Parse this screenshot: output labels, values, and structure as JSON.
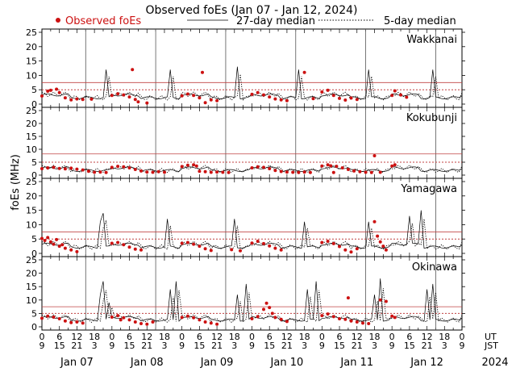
{
  "chart_data": {
    "type": "scatter",
    "title": "Observed foEs (Jan 07 - Jan 12, 2024)",
    "legend": {
      "observed": "Observed foEs",
      "median27": "27-day median",
      "median5": "5-day median",
      "placement": "top"
    },
    "ylabel": "foEs (MHz)",
    "ylim": [
      0,
      25
    ],
    "yticks": [
      0,
      5,
      10,
      15,
      20,
      25
    ],
    "x_unit_ut": "UT",
    "x_unit_jst": "JST",
    "year": "2024",
    "days": [
      "Jan 07",
      "Jan 08",
      "Jan 09",
      "Jan 10",
      "Jan 11",
      "Jan 12"
    ],
    "ut_ticks": [
      "0",
      "6",
      "12",
      "18",
      "0",
      "6",
      "12",
      "18",
      "0",
      "6",
      "12",
      "18",
      "0",
      "6",
      "12",
      "18",
      "0",
      "6",
      "12",
      "18",
      "0",
      "6",
      "12",
      "18",
      "0"
    ],
    "jst_ticks": [
      "9",
      "15",
      "21",
      "3",
      "9",
      "15",
      "21",
      "3",
      "9",
      "15",
      "21",
      "3",
      "9",
      "15",
      "21",
      "3",
      "9",
      "15",
      "21",
      "3",
      "9",
      "15",
      "21",
      "3",
      "9"
    ],
    "colors": {
      "observed": "#cc1111",
      "guides": "#c04040",
      "median": "#000000"
    },
    "stations": [
      {
        "name": "Wakkanai",
        "guide_solid": 7.5,
        "guide_dotted": 5,
        "median_base": 2.2,
        "median_spikes": [
          [
            22,
            12
          ],
          [
            44,
            12
          ],
          [
            67,
            13
          ],
          [
            88,
            12
          ],
          [
            112,
            12
          ],
          [
            134,
            12
          ]
        ],
        "observed": [
          [
            0,
            2.8
          ],
          [
            2,
            4.5
          ],
          [
            3,
            4.8
          ],
          [
            5,
            5.2
          ],
          [
            6,
            4.0
          ],
          [
            8,
            2.2
          ],
          [
            10,
            1.5
          ],
          [
            12,
            1.8
          ],
          [
            14,
            1.6
          ],
          [
            17,
            1.7
          ],
          [
            24,
            3.0
          ],
          [
            26,
            3.6
          ],
          [
            28,
            3.2
          ],
          [
            30,
            2.5
          ],
          [
            31,
            12.0
          ],
          [
            32,
            1.6
          ],
          [
            33,
            0.8
          ],
          [
            36,
            0.4
          ],
          [
            48,
            2.9
          ],
          [
            50,
            3.5
          ],
          [
            52,
            3.0
          ],
          [
            54,
            2.2
          ],
          [
            55,
            11.0
          ],
          [
            56,
            0.5
          ],
          [
            58,
            1.5
          ],
          [
            60,
            1.2
          ],
          [
            72,
            3.4
          ],
          [
            74,
            4.0
          ],
          [
            76,
            3.2
          ],
          [
            78,
            2.5
          ],
          [
            80,
            1.8
          ],
          [
            82,
            1.5
          ],
          [
            84,
            1.2
          ],
          [
            93,
            1.9
          ],
          [
            96,
            4.2
          ],
          [
            98,
            4.8
          ],
          [
            100,
            3.0
          ],
          [
            102,
            2.0
          ],
          [
            104,
            1.4
          ],
          [
            106,
            2.1
          ],
          [
            108,
            1.6
          ],
          [
            90,
            11.0
          ],
          [
            120,
            3.0
          ],
          [
            121,
            4.6
          ],
          [
            123,
            3.2
          ],
          [
            125,
            2.4
          ]
        ]
      },
      {
        "name": "Kokubunji",
        "guide_solid": 8.2,
        "guide_dotted": 5,
        "median_base": 1.8,
        "median_spikes": [],
        "observed": [
          [
            0,
            2.5
          ],
          [
            2,
            2.8
          ],
          [
            4,
            3.0
          ],
          [
            6,
            2.6
          ],
          [
            8,
            2.4
          ],
          [
            10,
            2.7
          ],
          [
            12,
            2.3
          ],
          [
            14,
            2.0
          ],
          [
            16,
            1.5
          ],
          [
            18,
            1.1
          ],
          [
            20,
            1.2
          ],
          [
            22,
            1.0
          ],
          [
            24,
            3.0
          ],
          [
            26,
            3.4
          ],
          [
            28,
            3.2
          ],
          [
            30,
            2.8
          ],
          [
            32,
            2.2
          ],
          [
            34,
            1.6
          ],
          [
            36,
            1.2
          ],
          [
            38,
            1.1
          ],
          [
            40,
            1.3
          ],
          [
            42,
            1.1
          ],
          [
            48,
            3.3
          ],
          [
            50,
            3.8
          ],
          [
            52,
            4.0
          ],
          [
            53,
            3.5
          ],
          [
            54,
            1.5
          ],
          [
            56,
            1.3
          ],
          [
            58,
            1.1
          ],
          [
            60,
            1.2
          ],
          [
            62,
            1.1
          ],
          [
            64,
            1.0
          ],
          [
            72,
            2.8
          ],
          [
            74,
            3.2
          ],
          [
            76,
            3.0
          ],
          [
            78,
            2.5
          ],
          [
            80,
            1.8
          ],
          [
            82,
            1.4
          ],
          [
            84,
            1.2
          ],
          [
            86,
            1.1
          ],
          [
            88,
            1.0
          ],
          [
            90,
            1.2
          ],
          [
            92,
            1.0
          ],
          [
            96,
            3.5
          ],
          [
            98,
            4.0
          ],
          [
            99,
            3.6
          ],
          [
            100,
            1.0
          ],
          [
            101,
            3.4
          ],
          [
            103,
            2.8
          ],
          [
            105,
            2.2
          ],
          [
            107,
            1.6
          ],
          [
            109,
            1.3
          ],
          [
            111,
            1.1
          ],
          [
            113,
            1.0
          ],
          [
            114,
            7.5
          ],
          [
            116,
            1.1
          ],
          [
            120,
            3.5
          ],
          [
            121,
            4.0
          ]
        ]
      },
      {
        "name": "Yamagawa",
        "guide_solid": 7.5,
        "guide_dotted": 5,
        "median_base": 2.2,
        "median_spikes": [
          [
            20,
            11
          ],
          [
            21,
            14
          ],
          [
            43,
            12
          ],
          [
            66,
            12
          ],
          [
            90,
            11
          ],
          [
            112,
            11
          ],
          [
            126,
            13
          ],
          [
            130,
            15
          ]
        ],
        "observed": [
          [
            0,
            5.2
          ],
          [
            1,
            4.5
          ],
          [
            2,
            5.5
          ],
          [
            3,
            4.0
          ],
          [
            4,
            3.2
          ],
          [
            5,
            4.8
          ],
          [
            6,
            2.5
          ],
          [
            7,
            3.0
          ],
          [
            8,
            1.8
          ],
          [
            10,
            1.2
          ],
          [
            12,
            0.6
          ],
          [
            24,
            3.5
          ],
          [
            26,
            3.8
          ],
          [
            28,
            3.0
          ],
          [
            30,
            2.2
          ],
          [
            32,
            1.5
          ],
          [
            34,
            1.2
          ],
          [
            48,
            3.5
          ],
          [
            50,
            3.8
          ],
          [
            52,
            3.2
          ],
          [
            54,
            2.5
          ],
          [
            56,
            1.6
          ],
          [
            58,
            1.0
          ],
          [
            65,
            1.3
          ],
          [
            68,
            0.9
          ],
          [
            72,
            3.6
          ],
          [
            74,
            4.2
          ],
          [
            76,
            3.4
          ],
          [
            78,
            2.6
          ],
          [
            80,
            1.8
          ],
          [
            82,
            1.2
          ],
          [
            96,
            3.8
          ],
          [
            98,
            4.2
          ],
          [
            100,
            3.4
          ],
          [
            102,
            2.4
          ],
          [
            104,
            1.2
          ],
          [
            106,
            0.5
          ],
          [
            108,
            1.6
          ],
          [
            114,
            11.0
          ],
          [
            115,
            6.0
          ],
          [
            116,
            4.0
          ],
          [
            117,
            2.5
          ],
          [
            118,
            1.2
          ]
        ]
      },
      {
        "name": "Okinawa",
        "guide_solid": 7.5,
        "guide_dotted": 5,
        "median_base": 2.5,
        "median_spikes": [
          [
            20,
            12
          ],
          [
            21,
            17
          ],
          [
            23,
            9
          ],
          [
            44,
            14
          ],
          [
            46,
            17
          ],
          [
            67,
            12
          ],
          [
            70,
            16
          ],
          [
            91,
            14
          ],
          [
            94,
            17
          ],
          [
            114,
            12
          ],
          [
            116,
            18
          ],
          [
            132,
            14
          ],
          [
            134,
            16
          ]
        ],
        "observed": [
          [
            0,
            3.2
          ],
          [
            2,
            4.0
          ],
          [
            4,
            3.6
          ],
          [
            6,
            3.0
          ],
          [
            8,
            2.2
          ],
          [
            10,
            1.6
          ],
          [
            12,
            1.8
          ],
          [
            14,
            1.4
          ],
          [
            24,
            3.6
          ],
          [
            26,
            4.2
          ],
          [
            27,
            2.6
          ],
          [
            28,
            3.4
          ],
          [
            30,
            2.6
          ],
          [
            32,
            1.8
          ],
          [
            34,
            1.2
          ],
          [
            36,
            1.0
          ],
          [
            38,
            1.8
          ],
          [
            48,
            3.5
          ],
          [
            50,
            4.0
          ],
          [
            52,
            3.4
          ],
          [
            54,
            2.6
          ],
          [
            56,
            1.8
          ],
          [
            58,
            1.4
          ],
          [
            60,
            1.0
          ],
          [
            72,
            3.0
          ],
          [
            74,
            3.8
          ],
          [
            76,
            6.5
          ],
          [
            77,
            8.8
          ],
          [
            78,
            7.2
          ],
          [
            79,
            5.0
          ],
          [
            80,
            3.5
          ],
          [
            82,
            2.8
          ],
          [
            84,
            2.0
          ],
          [
            96,
            4.2
          ],
          [
            98,
            4.8
          ],
          [
            100,
            3.8
          ],
          [
            102,
            3.0
          ],
          [
            104,
            2.8
          ],
          [
            105,
            10.8
          ],
          [
            106,
            2.2
          ],
          [
            108,
            1.8
          ],
          [
            110,
            1.4
          ],
          [
            112,
            1.2
          ],
          [
            116,
            10.0
          ],
          [
            118,
            9.5
          ],
          [
            120,
            4.0
          ],
          [
            121,
            3.5
          ]
        ]
      }
    ]
  }
}
